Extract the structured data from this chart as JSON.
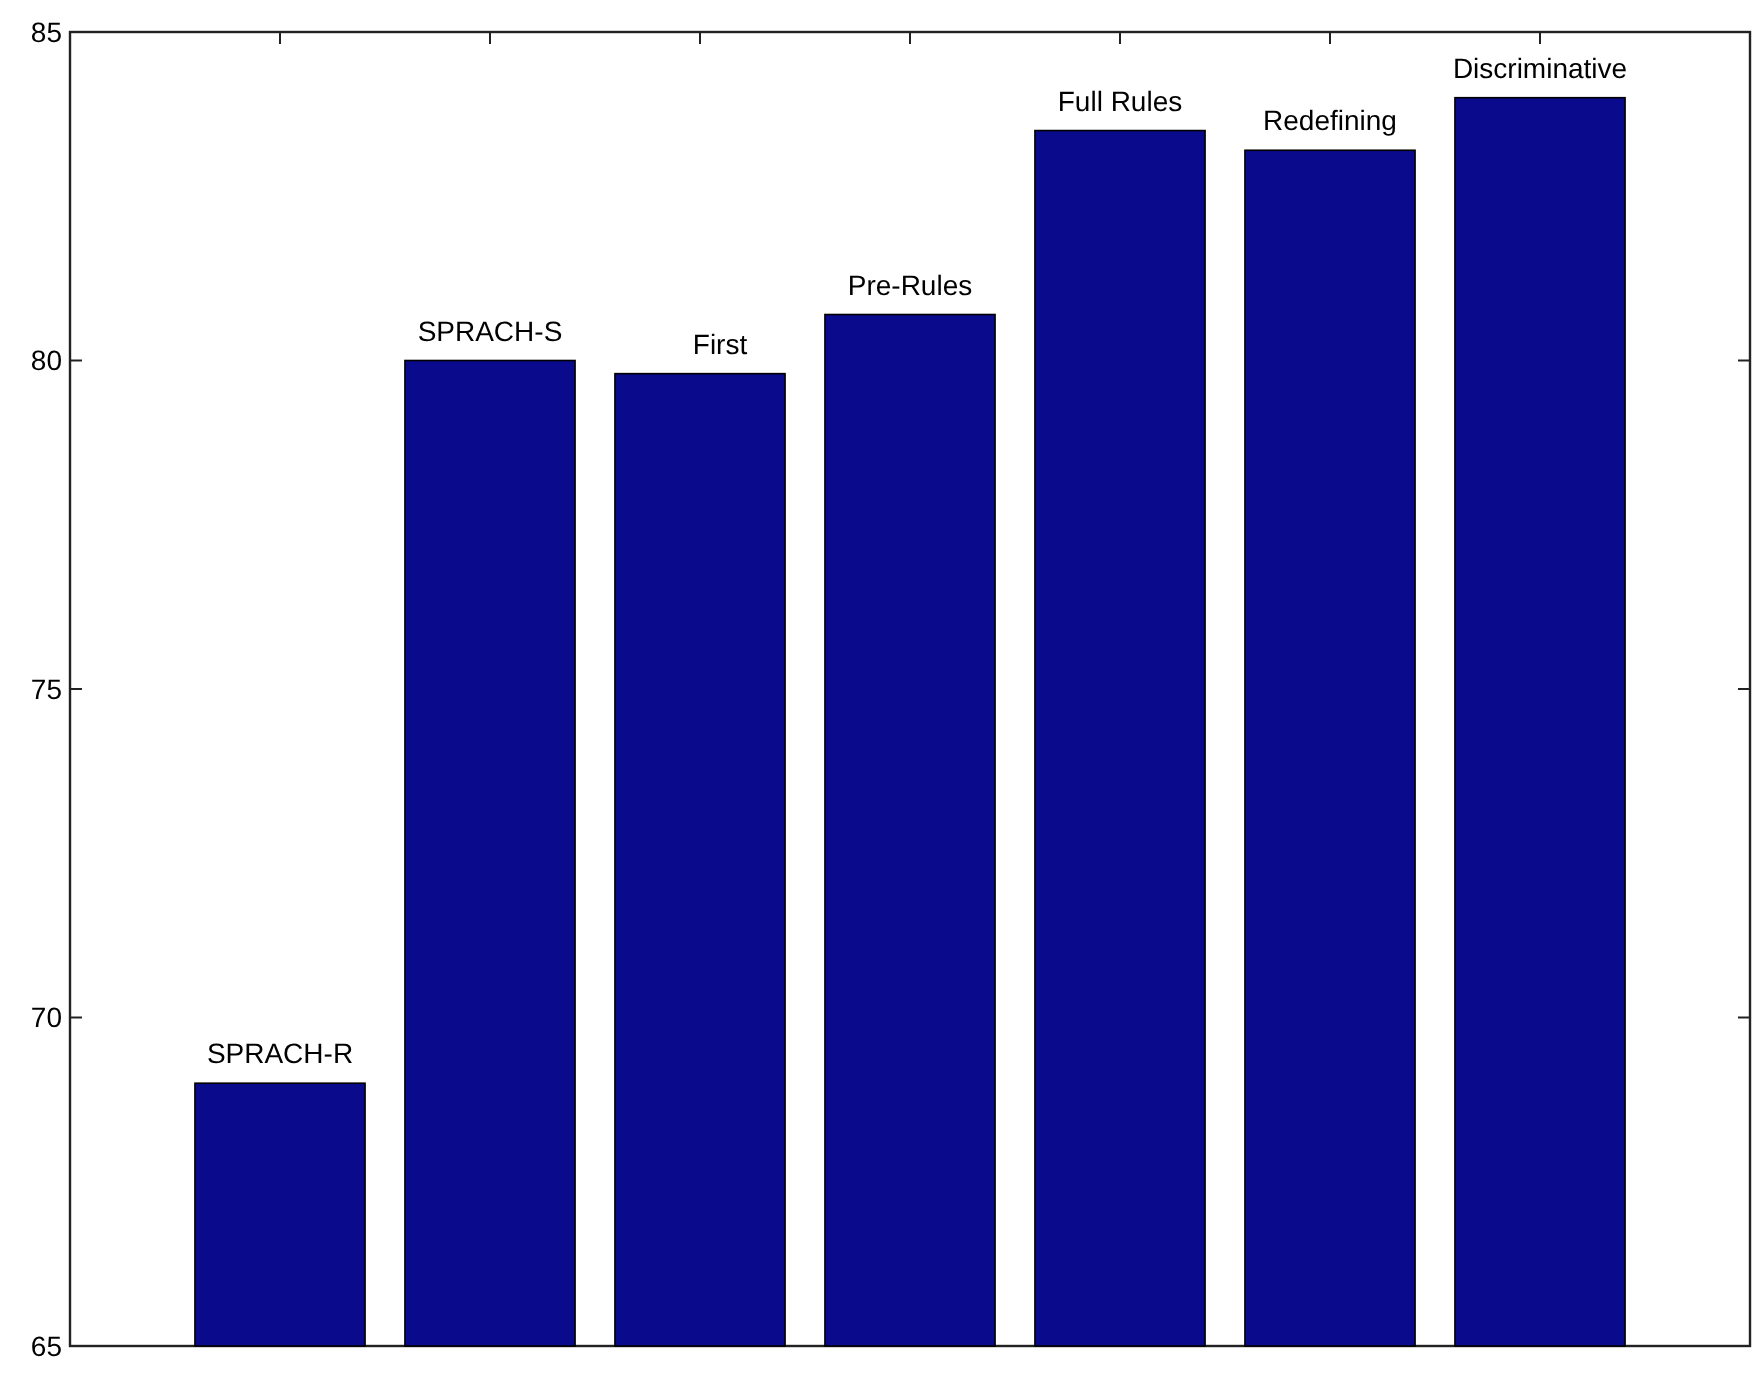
{
  "chart_data": {
    "type": "bar",
    "categories": [
      "SPRACH-R",
      "SPRACH-S",
      "First",
      "Pre-Rules",
      "Full Rules",
      "Redefining",
      "Discriminative"
    ],
    "values": [
      69.0,
      80.0,
      79.8,
      80.7,
      83.5,
      83.2,
      84.0
    ],
    "color": "#0a0a8c",
    "ylim": [
      65,
      85
    ],
    "yticks": [
      65,
      70,
      75,
      80,
      85
    ],
    "grid": false
  }
}
